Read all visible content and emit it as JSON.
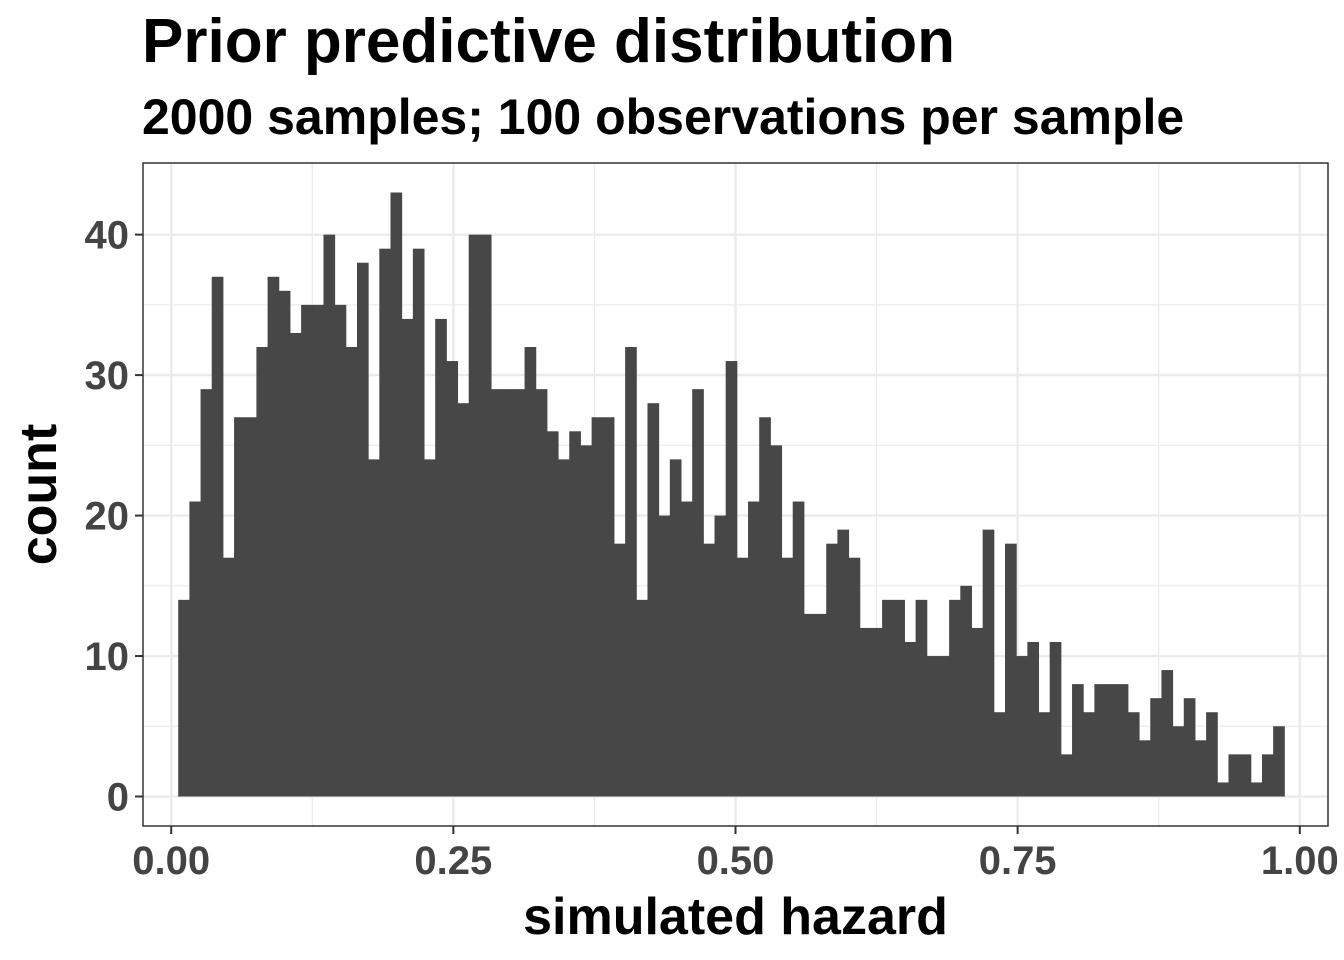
{
  "chart_data": {
    "type": "bar",
    "title": "Prior predictive distribution",
    "subtitle": "2000 samples; 100 observations per sample",
    "xlabel": "simulated hazard",
    "ylabel": "count",
    "xlim": [
      -0.025,
      1.025
    ],
    "ylim": [
      -2.1,
      45.1
    ],
    "x_ticks": [
      0,
      0.25,
      0.5,
      0.75,
      1
    ],
    "x_tick_labels": [
      "0.00",
      "0.25",
      "0.50",
      "0.75",
      "1.00"
    ],
    "y_ticks": [
      0,
      10,
      20,
      30,
      40
    ],
    "y_tick_labels": [
      "0",
      "10",
      "20",
      "30",
      "40"
    ],
    "bin_start": 0.0062,
    "bin_width": 0.0099,
    "values": [
      14,
      21,
      29,
      37,
      17,
      27,
      27,
      32,
      37,
      36,
      33,
      35,
      35,
      40,
      35,
      32,
      38,
      24,
      39,
      43,
      34,
      39,
      24,
      34,
      31,
      28,
      40,
      40,
      29,
      29,
      29,
      32,
      29,
      26,
      24,
      26,
      25,
      27,
      27,
      18,
      32,
      14,
      28,
      20,
      24,
      21,
      29,
      18,
      20,
      31,
      17,
      21,
      27,
      25,
      17,
      21,
      13,
      13,
      18,
      19,
      17,
      12,
      12,
      14,
      14,
      11,
      14,
      10,
      10,
      14,
      15,
      12,
      19,
      6,
      18,
      10,
      11,
      6,
      11,
      3,
      8,
      6,
      8,
      8,
      8,
      6,
      4,
      7,
      9,
      5,
      7,
      4,
      6,
      1,
      3,
      3,
      1,
      3,
      5
    ],
    "bar_color": "#474747",
    "panel_background": "#ffffff",
    "grid": true,
    "grid_color": "#ebebeb",
    "legend": "none"
  }
}
